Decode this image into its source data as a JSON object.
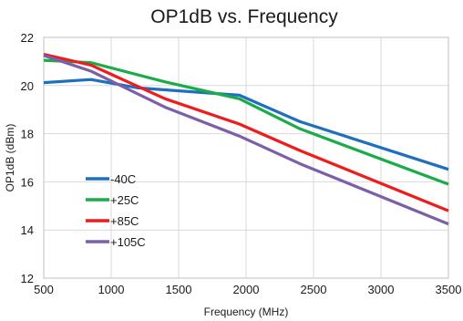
{
  "chart_data": {
    "type": "line",
    "title": "OP1dB vs. Frequency",
    "xlabel": "Frequency (MHz)",
    "ylabel": "OP1dB (dBm)",
    "xlim": [
      500,
      3500
    ],
    "ylim": [
      12,
      22
    ],
    "xticks": [
      500,
      1000,
      1500,
      2000,
      2500,
      3000,
      3500
    ],
    "yticks": [
      12,
      14,
      16,
      18,
      20,
      22
    ],
    "grid": true,
    "legend_position": "bottom-left",
    "series": [
      {
        "name": "-40C",
        "color": "#1f6fbf",
        "x": [
          500,
          850,
          1200,
          1950,
          2400,
          3500
        ],
        "y": [
          20.12,
          20.25,
          19.9,
          19.6,
          18.5,
          16.52
        ]
      },
      {
        "name": "+25C",
        "color": "#1aac4a",
        "x": [
          500,
          850,
          1400,
          1950,
          2400,
          3500
        ],
        "y": [
          21.05,
          20.95,
          20.15,
          19.45,
          18.2,
          15.9
        ]
      },
      {
        "name": "+85C",
        "color": "#ee1c1c",
        "x": [
          500,
          850,
          1400,
          1950,
          2400,
          3500
        ],
        "y": [
          21.3,
          20.85,
          19.45,
          18.4,
          17.3,
          14.8
        ]
      },
      {
        "name": "+105C",
        "color": "#7b5fa8",
        "x": [
          500,
          850,
          1400,
          1950,
          2400,
          3500
        ],
        "y": [
          21.25,
          20.6,
          19.1,
          17.9,
          16.75,
          14.25
        ]
      }
    ]
  }
}
